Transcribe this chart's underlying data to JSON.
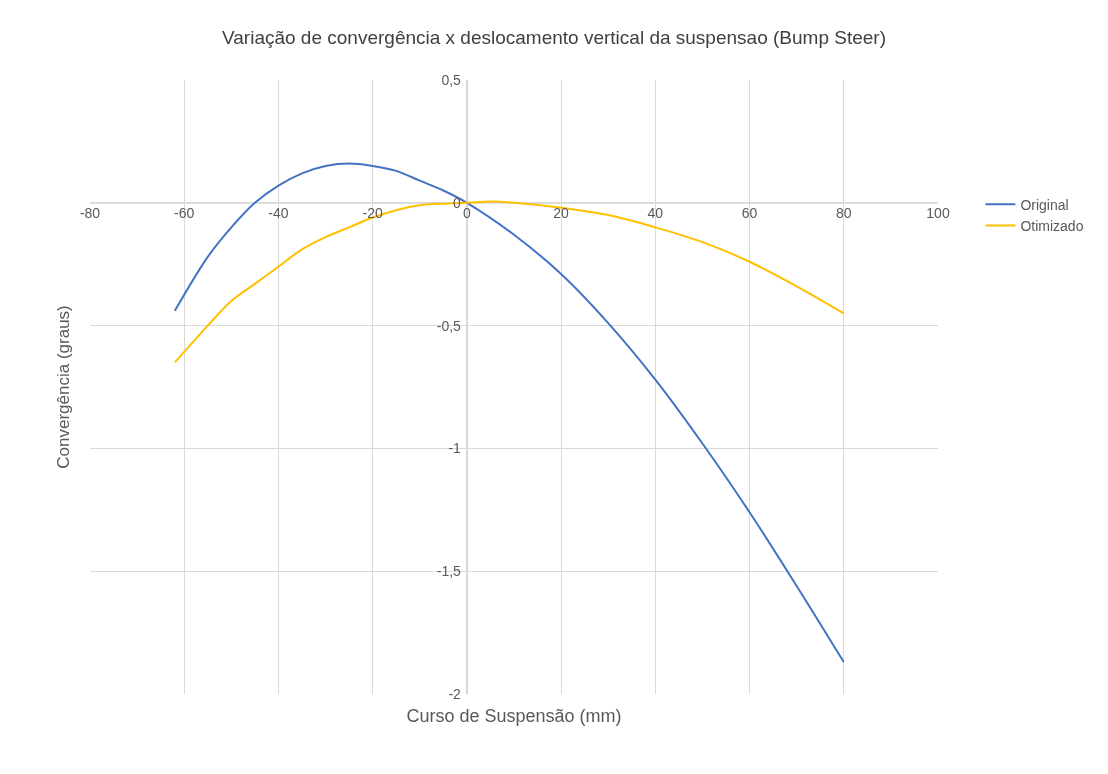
{
  "chart_data": {
    "type": "line",
    "title": "Variação de convergência x deslocamento vertical da suspensao (Bump Steer)",
    "xlabel": "Curso de Suspensão (mm)",
    "ylabel": "Convergência (graus)",
    "xlim": [
      -80,
      100
    ],
    "xticks": [
      -80,
      -60,
      -40,
      -20,
      0,
      20,
      40,
      60,
      80,
      100
    ],
    "ylim": [
      -2,
      0.5
    ],
    "yticks": [
      {
        "value": -2,
        "label": "-2"
      },
      {
        "value": -1.5,
        "label": "-1,5"
      },
      {
        "value": -1,
        "label": "-1"
      },
      {
        "value": -0.5,
        "label": "-0,5"
      },
      {
        "value": 0,
        "label": "0"
      },
      {
        "value": 0.5,
        "label": "0,5"
      }
    ],
    "grid": true,
    "legend": "right",
    "marker": "none",
    "line_style": "solid",
    "series": [
      {
        "name": "Original",
        "color": "#4472c4",
        "x": [
          -62,
          -55,
          -50,
          -45,
          -40,
          -35,
          -30,
          -25,
          -20,
          -15,
          -10,
          -5,
          0,
          10,
          20,
          30,
          40,
          50,
          60,
          70,
          80
        ],
        "values": [
          -0.44,
          -0.22,
          -0.1,
          0.0,
          0.07,
          0.12,
          0.15,
          0.16,
          0.15,
          0.13,
          0.09,
          0.05,
          0.0,
          -0.13,
          -0.29,
          -0.49,
          -0.72,
          -0.98,
          -1.26,
          -1.56,
          -1.87
        ]
      },
      {
        "name": "Otimizado",
        "color": "#ffc000",
        "x": [
          -62,
          -55,
          -50,
          -45,
          -40,
          -35,
          -30,
          -25,
          -20,
          -15,
          -10,
          0,
          5,
          10,
          20,
          30,
          40,
          50,
          60,
          70,
          80
        ],
        "values": [
          -0.65,
          -0.5,
          -0.4,
          -0.33,
          -0.26,
          -0.19,
          -0.14,
          -0.1,
          -0.06,
          -0.03,
          -0.01,
          0.0,
          0.005,
          0.0,
          -0.02,
          -0.05,
          -0.1,
          -0.16,
          -0.24,
          -0.34,
          -0.45
        ]
      }
    ]
  }
}
